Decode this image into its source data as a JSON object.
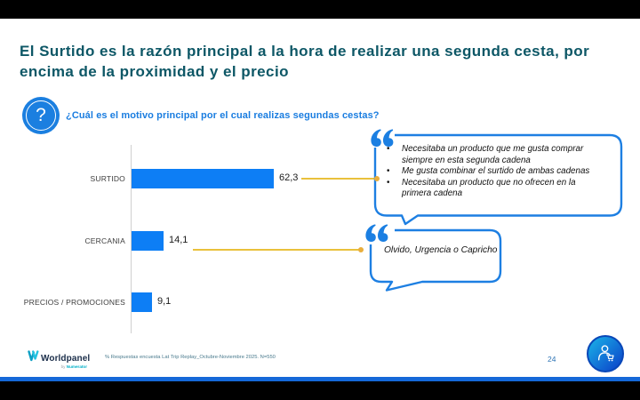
{
  "title": "El Surtido es la razón principal a la hora de realizar una segunda cesta, por encima de la proximidad y el precio",
  "question": {
    "text": "¿Cuál es el motivo principal por el cual realizas segundas cestas?",
    "icon_glyph": "?"
  },
  "chart_data": {
    "type": "bar",
    "orientation": "horizontal",
    "categories": [
      "SURTIDO",
      "CERCANIA",
      "PRECIOS / PROMOCIONES"
    ],
    "values": [
      62.3,
      14.1,
      9.1
    ],
    "value_labels": [
      "62,3",
      "14,1",
      "9,1"
    ],
    "bar_color": "#0d7ef5",
    "xlim": [
      0,
      100
    ],
    "grid": false,
    "legend": false,
    "title": "",
    "xlabel": "",
    "ylabel": ""
  },
  "callouts": [
    {
      "bullets": [
        "Necesitaba un producto que me gusta comprar siempre en esta segunda cadena",
        "Me gusta combinar el surtido de ambas cadenas",
        "Necesitaba un producto que no ofrecen en la primera cadena"
      ]
    },
    {
      "text": "Olvido, Urgencia o Capricho"
    }
  ],
  "footer": {
    "brand": "Worldpanel",
    "sub_prefix": "by ",
    "sub_brand": "Numerator",
    "footnote": "% Respuestas encuesta Lat Trip Replay_Octubre-Noviembre 2025. N=550",
    "page_number": "24"
  },
  "colors": {
    "title_teal": "#0d5766",
    "question_blue": "#1a7de0",
    "bar_blue": "#0d7ef5",
    "callout_border_blue": "#1d7fe2",
    "connector_yellow": "#e9c13c",
    "footer_strip_blue": "#1568d8"
  }
}
